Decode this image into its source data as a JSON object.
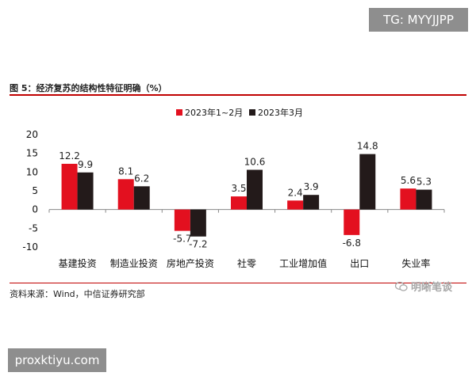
{
  "watermark_top": "TG: MYYJJPP",
  "watermark_bottom": "proxktiyu.com",
  "figure_title": "图 5：经济复苏的结构性特征明确（%）",
  "source": "资料来源：Wind，中信证券研究部",
  "wechat_label": "明晰笔谈",
  "chart_data": {
    "type": "bar",
    "title": "",
    "xlabel": "",
    "ylabel": "",
    "ylim": [
      -10,
      20
    ],
    "yticks": [
      -10,
      -5,
      0,
      5,
      10,
      15,
      20
    ],
    "grid": false,
    "legend_position": "top-center",
    "categories": [
      "基建投资",
      "制造业投资",
      "房地产投资",
      "社零",
      "工业增加值",
      "出口",
      "失业率"
    ],
    "series": [
      {
        "name": "2023年1~2月",
        "color": "#e3101f",
        "values": [
          12.2,
          8.1,
          -5.7,
          3.5,
          2.4,
          -6.8,
          5.6
        ],
        "labels": [
          "12.2",
          "8.1",
          "-5.7",
          "3.5",
          "2.4",
          "-6.8",
          "5.6"
        ]
      },
      {
        "name": "2023年3月",
        "color": "#231a1a",
        "values": [
          9.9,
          6.2,
          -7.2,
          10.6,
          3.9,
          14.8,
          5.3
        ],
        "labels": [
          "9.9",
          "6.2",
          "-7.2",
          "10.6",
          "3.9",
          "14.8",
          "5.3"
        ]
      }
    ]
  }
}
